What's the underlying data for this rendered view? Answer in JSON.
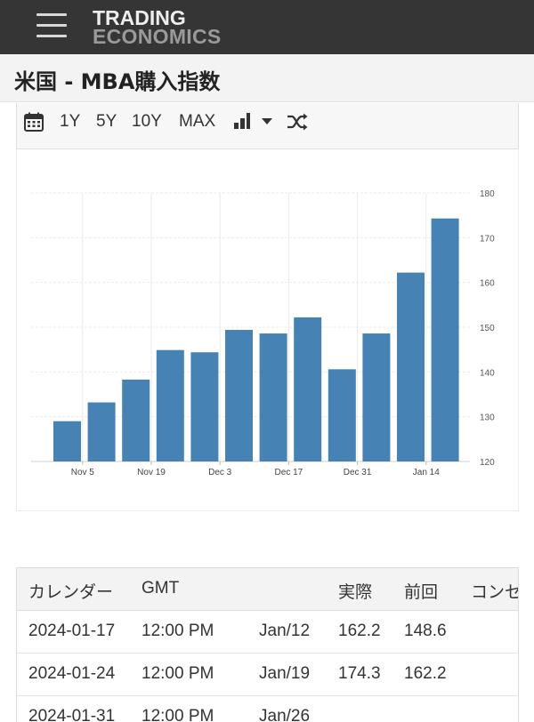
{
  "header": {
    "logo_line1": "TRADING",
    "logo_line2": "ECONOMICS",
    "menu_icon": "hamburger-menu-icon"
  },
  "page": {
    "title": "米国 - MBA購入指数"
  },
  "toolbar": {
    "calendar_icon": "calendar-icon",
    "ranges": [
      "1Y",
      "5Y",
      "10Y",
      "MAX"
    ],
    "chart_type_icon": "bar-chart-icon",
    "dropdown_icon": "caret-down-icon",
    "compare_icon": "shuffle-icon"
  },
  "chart_data": {
    "type": "bar",
    "color": "#4682b4",
    "x_tick_labels": [
      "Nov 5",
      "Nov 19",
      "Dec 3",
      "Dec 17",
      "Dec 31",
      "Jan 14"
    ],
    "categories": [
      "2023-10-31",
      "2023-11-07",
      "2023-11-14",
      "2023-11-21",
      "2023-11-28",
      "2023-12-05",
      "2023-12-12",
      "2023-12-19",
      "2023-12-26",
      "2024-01-02",
      "2024-01-09",
      "2024-01-16"
    ],
    "values": [
      129,
      133.2,
      138.3,
      144.9,
      144.4,
      149.4,
      148.6,
      152.2,
      140.6,
      148.6,
      162.2,
      174.3
    ],
    "ylim": [
      120,
      180
    ],
    "yticks": [
      120,
      130,
      140,
      150,
      160,
      170,
      180
    ],
    "y_axis_position": "right",
    "grid": true
  },
  "table": {
    "headers": [
      "カレンダー",
      "GMT",
      "",
      "実際",
      "前回",
      "コンセンサス"
    ],
    "rows": [
      [
        "2024-01-17",
        "12:00 PM",
        "Jan/12",
        "162.2",
        "148.6",
        ""
      ],
      [
        "2024-01-24",
        "12:00 PM",
        "Jan/19",
        "174.3",
        "162.2",
        ""
      ],
      [
        "2024-01-31",
        "12:00 PM",
        "Jan/26",
        "",
        "",
        ""
      ]
    ]
  }
}
